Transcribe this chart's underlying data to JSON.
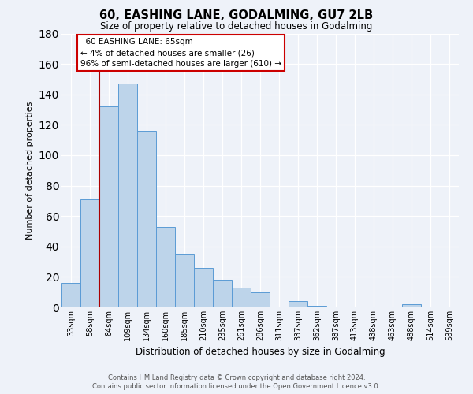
{
  "title": "60, EASHING LANE, GODALMING, GU7 2LB",
  "subtitle": "Size of property relative to detached houses in Godalming",
  "xlabel": "Distribution of detached houses by size in Godalming",
  "ylabel": "Number of detached properties",
  "categories": [
    "33sqm",
    "58sqm",
    "84sqm",
    "109sqm",
    "134sqm",
    "160sqm",
    "185sqm",
    "210sqm",
    "235sqm",
    "261sqm",
    "286sqm",
    "311sqm",
    "337sqm",
    "362sqm",
    "387sqm",
    "413sqm",
    "438sqm",
    "463sqm",
    "488sqm",
    "514sqm",
    "539sqm"
  ],
  "values": [
    16,
    71,
    132,
    147,
    116,
    53,
    35,
    26,
    18,
    13,
    10,
    0,
    4,
    1,
    0,
    0,
    0,
    0,
    2,
    0,
    0
  ],
  "bar_color": "#bdd4ea",
  "bar_edge_color": "#5b9bd5",
  "ylim": [
    0,
    180
  ],
  "yticks": [
    0,
    20,
    40,
    60,
    80,
    100,
    120,
    140,
    160,
    180
  ],
  "red_line_x": 1.5,
  "red_line_color": "#aa0000",
  "annotation_box_edge": "#cc0000",
  "marker_label": "60 EASHING LANE: 65sqm",
  "marker_smaller_pct": "4%",
  "marker_smaller_n": "26",
  "marker_larger_pct": "96%",
  "marker_larger_n": "610",
  "footer_line1": "Contains HM Land Registry data © Crown copyright and database right 2024.",
  "footer_line2": "Contains public sector information licensed under the Open Government Licence v3.0.",
  "bg_color": "#eef2f9",
  "plot_bg_color": "#eef2f9",
  "grid_color": "#ffffff"
}
